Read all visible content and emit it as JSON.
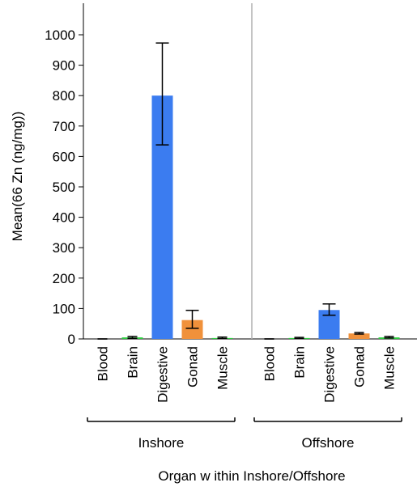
{
  "chart_data": {
    "type": "bar",
    "ylabel": "Mean(66 Zn (ng/mg))",
    "xlabel": "Organ w ithin Inshore/Offshore",
    "ylim": [
      0,
      1100
    ],
    "yticks": [
      0,
      100,
      200,
      300,
      400,
      500,
      600,
      700,
      800,
      900,
      1000
    ],
    "grid": false,
    "categories": [
      "Blood",
      "Brain",
      "Digestive",
      "Gonad",
      "Muscle"
    ],
    "category_colors": {
      "Blood": "#2ecc40",
      "Brain": "#2ecc40",
      "Digestive": "#3b7cf0",
      "Gonad": "#f0913b",
      "Muscle": "#2ecc40"
    },
    "groups": [
      {
        "name": "Inshore",
        "values": [
          0,
          5,
          800,
          62,
          3
        ],
        "err_low": [
          0,
          2,
          638,
          35,
          1
        ],
        "err_high": [
          0,
          8,
          973,
          94,
          6
        ]
      },
      {
        "name": "Offshore",
        "values": [
          0,
          3,
          95,
          18,
          5
        ],
        "err_low": [
          0,
          1,
          78,
          16,
          3
        ],
        "err_high": [
          0,
          5,
          115,
          21,
          8
        ]
      }
    ]
  }
}
